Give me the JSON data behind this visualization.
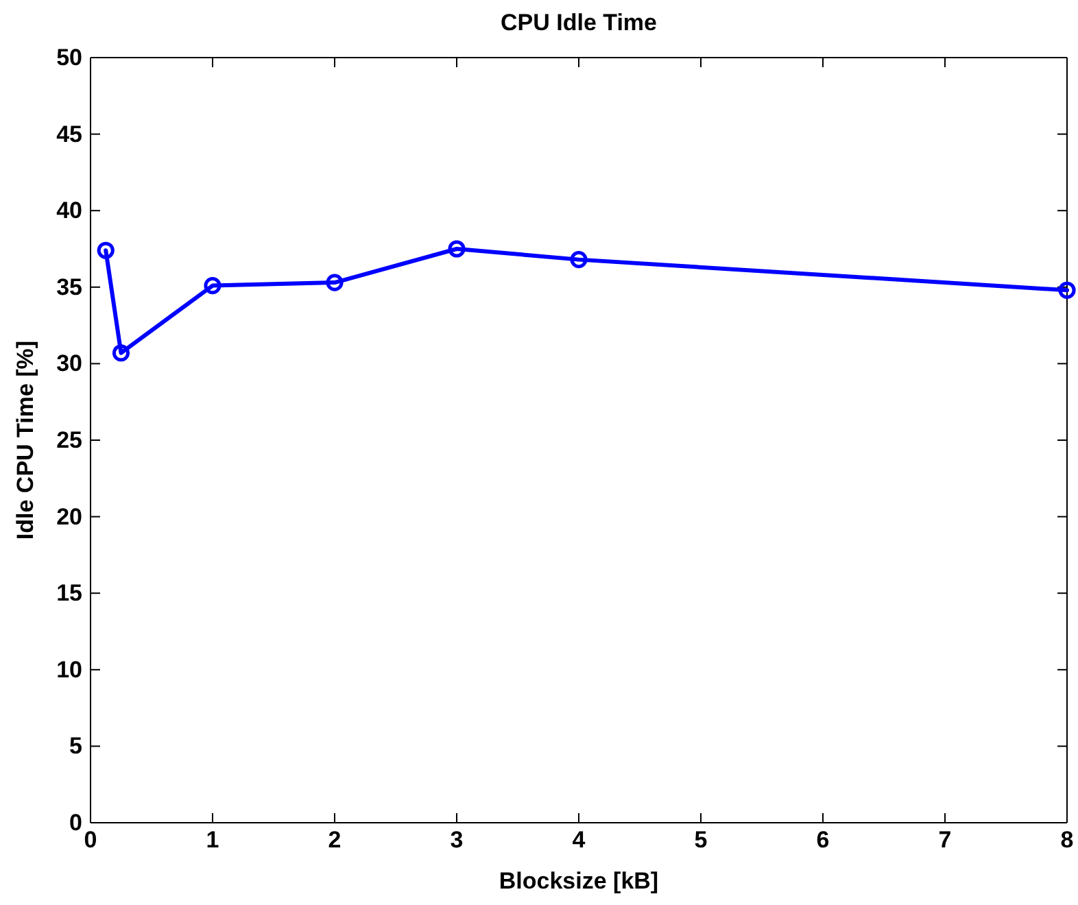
{
  "chart_data": {
    "type": "line",
    "title": "CPU Idle Time",
    "xlabel": "Blocksize [kB]",
    "ylabel": "Idle CPU Time [%]",
    "x": [
      0.125,
      0.25,
      1,
      2,
      3,
      4,
      8
    ],
    "series": [
      {
        "color": "#0000ff",
        "values": [
          37.4,
          30.7,
          35.1,
          35.3,
          37.5,
          36.8,
          34.8
        ]
      }
    ],
    "xlim": [
      0,
      8
    ],
    "xticks": [
      0,
      1,
      2,
      3,
      4,
      5,
      6,
      7,
      8
    ],
    "ylim": [
      0,
      50
    ],
    "yticks": [
      0,
      5,
      10,
      15,
      20,
      25,
      30,
      35,
      40,
      45,
      50
    ],
    "marker": "circle",
    "line_style": "solid"
  }
}
